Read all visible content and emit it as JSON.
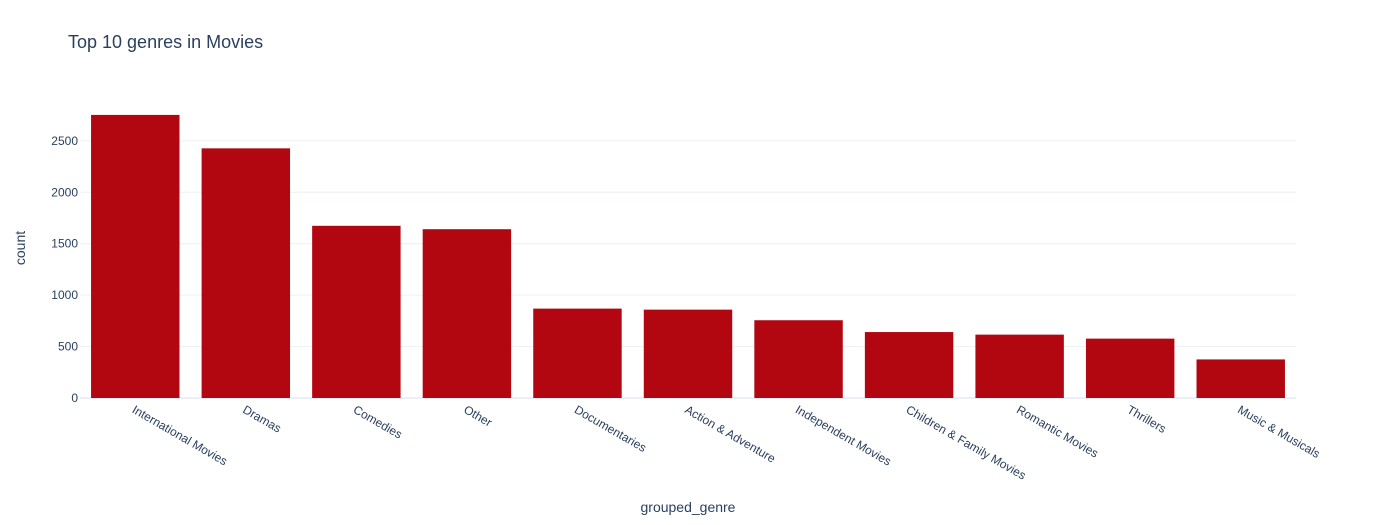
{
  "chart_data": {
    "type": "bar",
    "title": "Top 10 genres in Movies",
    "xlabel": "grouped_genre",
    "ylabel": "count",
    "categories": [
      "International Movies",
      "Dramas",
      "Comedies",
      "Other",
      "Documentaries",
      "Action & Adventure",
      "Independent Movies",
      "Children & Family Movies",
      "Romantic Movies",
      "Thrillers",
      "Music & Musicals"
    ],
    "values": [
      2752,
      2427,
      1674,
      1641,
      869,
      859,
      756,
      641,
      616,
      577,
      375
    ],
    "ylim": [
      0,
      2897
    ],
    "yticks": [
      0,
      500,
      1000,
      1500,
      2000,
      2500
    ],
    "bar_color": "#b20710",
    "grid": true,
    "legend": "none"
  }
}
